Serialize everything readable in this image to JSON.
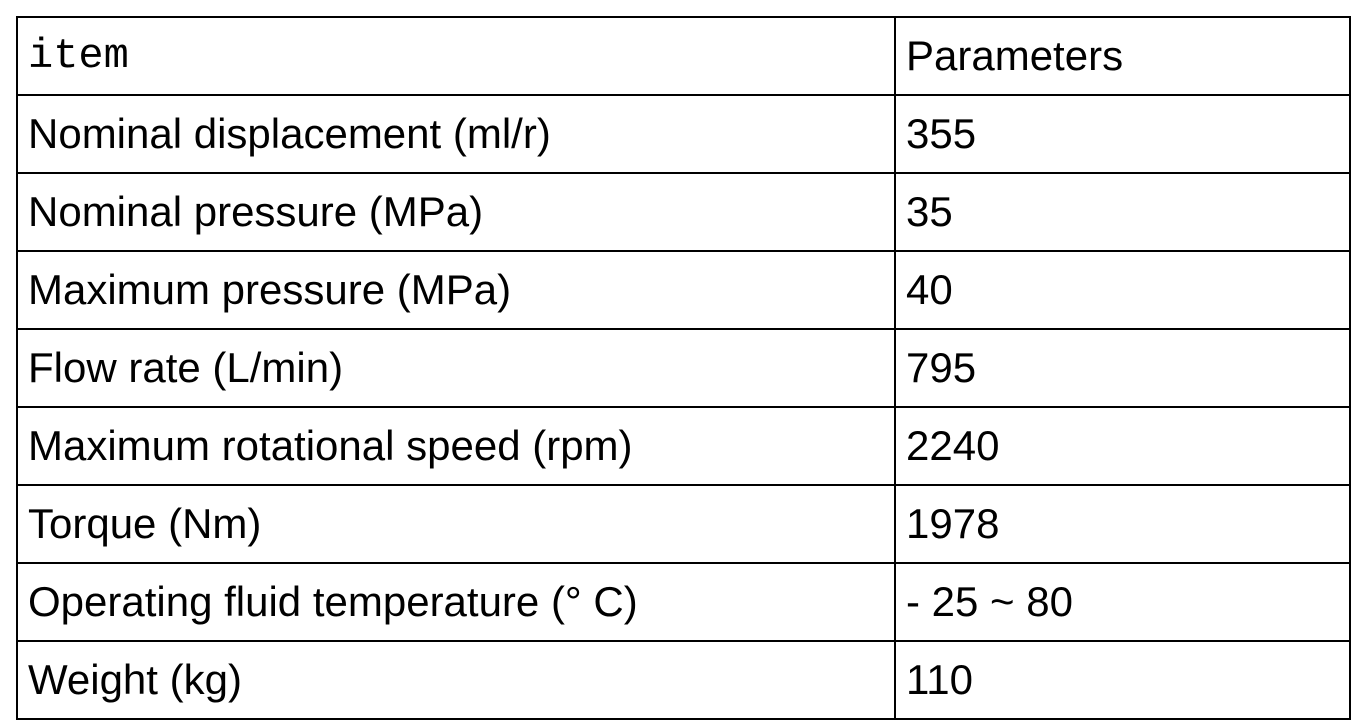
{
  "table": {
    "header": [
      "item",
      "Parameters"
    ],
    "rows": [
      [
        "Nominal displacement (ml/r)",
        "355"
      ],
      [
        "Nominal pressure (MPa)",
        "35"
      ],
      [
        "Maximum pressure (MPa)",
        "40"
      ],
      [
        "Flow rate (L/min)",
        "795"
      ],
      [
        "Maximum rotational speed (rpm)",
        "2240"
      ],
      [
        "Torque (Nm)",
        "1978"
      ],
      [
        "Operating fluid temperature (° C)",
        "- 25 ~ 80"
      ],
      [
        "Weight (kg)",
        "110"
      ]
    ]
  }
}
